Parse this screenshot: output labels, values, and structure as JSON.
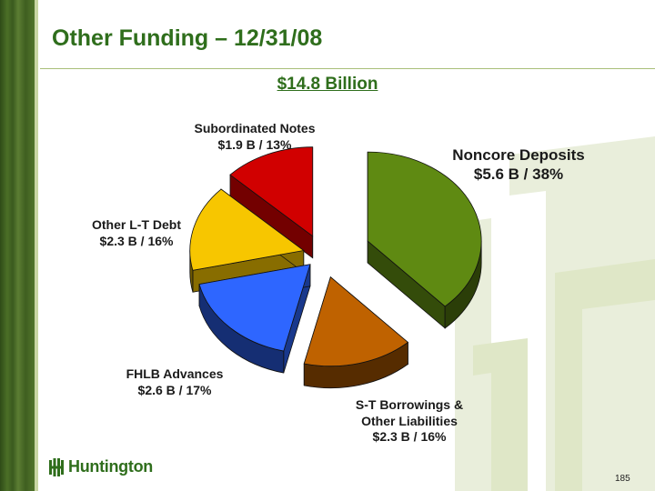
{
  "slide": {
    "title": "Other Funding – 12/31/08",
    "total": "$14.8 Billion",
    "page_number": "185",
    "logo_text": "Huntington"
  },
  "colors": {
    "brand_green": "#2f6e1c",
    "band": "#4b6f27"
  },
  "chart_data": {
    "type": "pie",
    "title": "$14.8 Billion",
    "three_d": true,
    "exploded": true,
    "unit": "$B",
    "slices": [
      {
        "name": "Noncore Deposits",
        "value": 5.6,
        "percent": 38,
        "label_line1": "Noncore Deposits",
        "label_line2": "$5.6 B / 38%",
        "color": "#5f8a12"
      },
      {
        "name": "S-T Borrowings & Other Liabilities",
        "value": 2.3,
        "percent": 16,
        "label_line1": "S-T Borrowings &",
        "label_line1b": "Other Liabilities",
        "label_line2": "$2.3 B / 16%",
        "color": "#bf6200"
      },
      {
        "name": "FHLB Advances",
        "value": 2.6,
        "percent": 17,
        "label_line1": "FHLB Advances",
        "label_line2": "$2.6 B / 17%",
        "color": "#2e66ff"
      },
      {
        "name": "Other L-T Debt",
        "value": 2.3,
        "percent": 16,
        "label_line1": "Other L-T Debt",
        "label_line2": "$2.3 B / 16%",
        "color": "#f7c600"
      },
      {
        "name": "Subordinated Notes",
        "value": 1.9,
        "percent": 13,
        "label_line1": "Subordinated Notes",
        "label_line2": "$1.9 B / 13%",
        "color": "#d10000"
      }
    ]
  }
}
